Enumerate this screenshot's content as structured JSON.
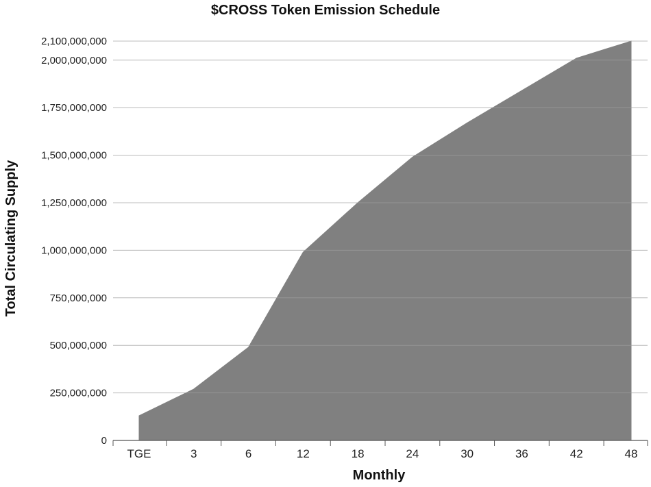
{
  "chart_data": {
    "type": "area",
    "title": "$CROSS Token Emission Schedule",
    "xlabel": "Monthly",
    "ylabel": "Total Circulating Supply",
    "categories": [
      "TGE",
      "3",
      "6",
      "12",
      "18",
      "24",
      "30",
      "36",
      "42",
      "48"
    ],
    "series": [
      {
        "values": [
          130000000,
          270000000,
          490000000,
          990000000,
          1250000000,
          1490000000,
          1670000000,
          1840000000,
          2010000000,
          2100000000
        ],
        "color": "#808080"
      }
    ],
    "yticks": [
      0,
      250000000,
      500000000,
      750000000,
      1000000000,
      1250000000,
      1500000000,
      1750000000,
      2000000000,
      2100000000
    ],
    "ytick_labels": [
      "0",
      "250,000,000",
      "500,000,000",
      "750,000,000",
      "1,000,000,000",
      "1,250,000,000",
      "1,500,000,000",
      "1,750,000,000",
      "2,000,000,000",
      "2,100,000,000"
    ],
    "ylim": [
      0,
      2100000000
    ],
    "grid": "horizontal",
    "legend": "none"
  }
}
